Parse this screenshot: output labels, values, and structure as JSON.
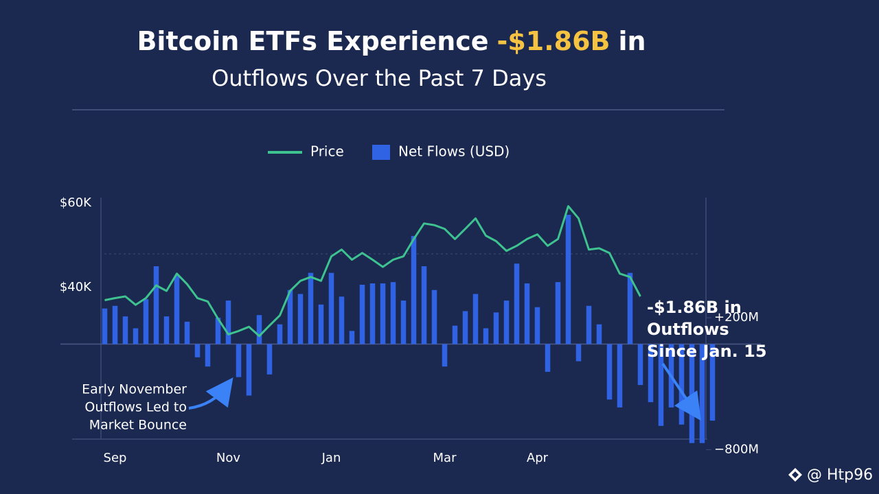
{
  "chart_data": {
    "type": "combo",
    "title_parts": [
      "Bitcoin ETFs Experience",
      "-$1.86B",
      "in"
    ],
    "subtitle": "Outflows Over the Past 7 Days",
    "categories": [
      null,
      "Sep",
      null,
      null,
      null,
      null,
      null,
      null,
      null,
      null,
      null,
      null,
      "Nov",
      null,
      null,
      null,
      null,
      null,
      null,
      null,
      null,
      null,
      "Jan",
      null,
      null,
      null,
      null,
      null,
      null,
      null,
      null,
      null,
      null,
      "Mar",
      null,
      null,
      null,
      null,
      null,
      null,
      null,
      null,
      "Apr",
      null,
      null,
      null,
      null,
      null,
      null,
      null,
      null,
      null,
      null,
      null,
      null,
      null,
      null,
      null,
      null,
      null
    ],
    "series": [
      {
        "name": "Price",
        "type": "line",
        "color": "#3ec28f",
        "values": [
          37000,
          37500,
          37900,
          35900,
          37500,
          40500,
          39200,
          43300,
          40800,
          37500,
          36700,
          32600,
          28900,
          29700,
          30700,
          28500,
          31000,
          33400,
          39200,
          41600,
          42500,
          41600,
          47400,
          49000,
          46600,
          48200,
          46600,
          44900,
          46600,
          47400,
          51500,
          55200,
          54800,
          53900,
          51500,
          53900,
          56400,
          52300,
          51000,
          48700,
          49900,
          51500,
          52600,
          49900,
          51500,
          59300,
          56400,
          49000,
          49300,
          48200,
          43300,
          42500,
          37900,
          null,
          null,
          null,
          null,
          null,
          null,
          null
        ]
      },
      {
        "name": "Net Flows (USD)",
        "type": "bar",
        "axis": "y2",
        "color": "#2f63e3",
        "values": [
          270,
          290,
          210,
          120,
          340,
          590,
          210,
          520,
          170,
          -100,
          -170,
          200,
          330,
          -250,
          -390,
          220,
          -230,
          150,
          410,
          380,
          540,
          300,
          540,
          360,
          100,
          450,
          460,
          460,
          470,
          330,
          820,
          590,
          410,
          -170,
          140,
          250,
          380,
          120,
          240,
          330,
          610,
          460,
          280,
          -210,
          470,
          980,
          -130,
          290,
          150,
          -420,
          -480,
          540,
          -310,
          -440,
          -620,
          -480,
          -610,
          -750,
          -750,
          -580
        ]
      }
    ],
    "ylim": [
      0,
      61000
    ],
    "yticks": [
      {
        "value": 40000,
        "label": "$40K"
      },
      {
        "value": 60000,
        "label": "$60K"
      }
    ],
    "y2lim": [
      -850,
      1100
    ],
    "y2ticks": [
      {
        "value": 200,
        "label": "+200M"
      },
      {
        "value": -800,
        "label": "−800M"
      }
    ],
    "annotations": [
      {
        "lines": [
          "-$1.86B in",
          "Outflows",
          "Since Jan. 15"
        ]
      },
      {
        "lines": [
          "Early November",
          "Outflows Led to",
          "Market Bounce"
        ]
      }
    ],
    "watermark": "@ Htp96"
  }
}
